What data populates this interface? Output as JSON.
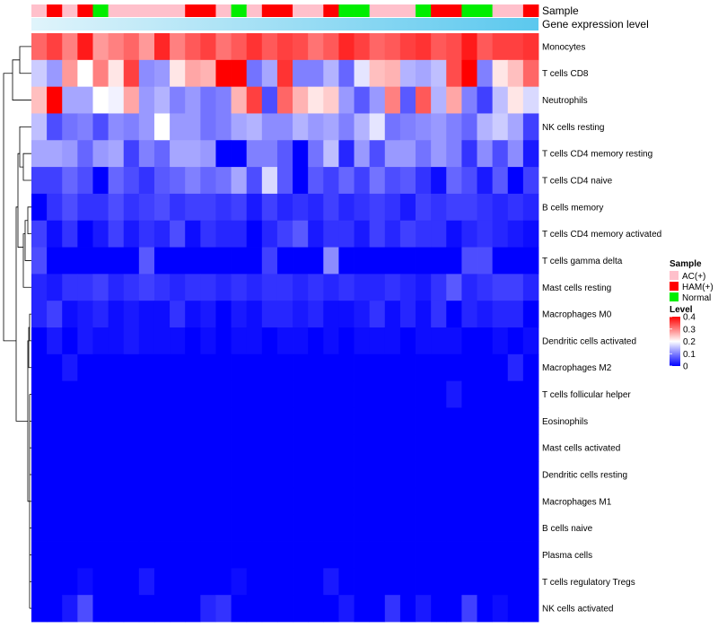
{
  "chart_data": {
    "type": "heatmap",
    "title": "",
    "annotation_rows": [
      "Sample",
      "Gene expression level"
    ],
    "sample_groups": [
      "AC",
      "HAM",
      "AC",
      "HAM",
      "Normal",
      "AC",
      "AC",
      "AC",
      "AC",
      "AC",
      "HAM",
      "HAM",
      "AC",
      "Normal",
      "AC",
      "HAM",
      "HAM",
      "AC",
      "AC",
      "HAM",
      "Normal",
      "Normal",
      "AC",
      "AC",
      "AC",
      "Normal",
      "HAM",
      "HAM",
      "Normal",
      "Normal",
      "AC",
      "AC",
      "HAM"
    ],
    "rows": [
      {
        "label": "Monocytes",
        "values": [
          0.32,
          0.35,
          0.3,
          0.38,
          0.28,
          0.3,
          0.32,
          0.28,
          0.37,
          0.3,
          0.33,
          0.35,
          0.31,
          0.33,
          0.36,
          0.33,
          0.35,
          0.34,
          0.31,
          0.33,
          0.37,
          0.35,
          0.32,
          0.33,
          0.35,
          0.36,
          0.33,
          0.34,
          0.38,
          0.33,
          0.35,
          0.35,
          0.36
        ]
      },
      {
        "label": "T cells CD8",
        "values": [
          0.16,
          0.12,
          0.28,
          0.2,
          0.3,
          0.22,
          0.35,
          0.11,
          0.12,
          0.22,
          0.27,
          0.26,
          0.4,
          0.4,
          0.09,
          0.13,
          0.36,
          0.1,
          0.1,
          0.14,
          0.08,
          0.18,
          0.25,
          0.26,
          0.14,
          0.13,
          0.15,
          0.34,
          0.4,
          0.1,
          0.22,
          0.25,
          0.32
        ]
      },
      {
        "label": "Neutrophils",
        "values": [
          0.25,
          0.42,
          0.13,
          0.13,
          0.2,
          0.19,
          0.27,
          0.12,
          0.14,
          0.1,
          0.12,
          0.09,
          0.1,
          0.26,
          0.35,
          0.06,
          0.32,
          0.26,
          0.22,
          0.24,
          0.12,
          0.07,
          0.12,
          0.3,
          0.07,
          0.33,
          0.14,
          0.27,
          0.1,
          0.05,
          0.15,
          0.22,
          0.17
        ]
      },
      {
        "label": "NK cells resting",
        "values": [
          0.15,
          0.06,
          0.09,
          0.1,
          0.06,
          0.11,
          0.1,
          0.12,
          0.2,
          0.12,
          0.12,
          0.09,
          0.1,
          0.13,
          0.14,
          0.11,
          0.11,
          0.14,
          0.12,
          0.13,
          0.1,
          0.14,
          0.18,
          0.09,
          0.1,
          0.11,
          0.12,
          0.1,
          0.08,
          0.14,
          0.16,
          0.13,
          0.05
        ]
      },
      {
        "label": "T cells CD4 memory resting",
        "values": [
          0.13,
          0.13,
          0.12,
          0.08,
          0.12,
          0.13,
          0.05,
          0.1,
          0.08,
          0.13,
          0.13,
          0.12,
          0.0,
          0.0,
          0.1,
          0.1,
          0.07,
          0.0,
          0.09,
          0.15,
          0.03,
          0.12,
          0.06,
          0.12,
          0.12,
          0.09,
          0.12,
          0.1,
          0.04,
          0.11,
          0.06,
          0.11,
          0.02
        ]
      },
      {
        "label": "T cells CD4 naive",
        "values": [
          0.05,
          0.05,
          0.08,
          0.06,
          0.0,
          0.08,
          0.06,
          0.04,
          0.07,
          0.08,
          0.1,
          0.08,
          0.09,
          0.13,
          0.06,
          0.17,
          0.07,
          0.0,
          0.07,
          0.05,
          0.08,
          0.05,
          0.09,
          0.06,
          0.07,
          0.04,
          0.01,
          0.08,
          0.06,
          0.02,
          0.07,
          0.0,
          0.05
        ]
      },
      {
        "label": "B cells memory",
        "values": [
          0.0,
          0.04,
          0.06,
          0.04,
          0.04,
          0.06,
          0.04,
          0.05,
          0.06,
          0.04,
          0.05,
          0.05,
          0.04,
          0.05,
          0.02,
          0.05,
          0.03,
          0.04,
          0.03,
          0.05,
          0.03,
          0.04,
          0.05,
          0.04,
          0.02,
          0.05,
          0.04,
          0.05,
          0.05,
          0.04,
          0.03,
          0.04,
          0.03
        ]
      },
      {
        "label": "T cells CD4 memory activated",
        "values": [
          0.05,
          0.01,
          0.04,
          0.0,
          0.02,
          0.05,
          0.02,
          0.04,
          0.03,
          0.06,
          0.01,
          0.04,
          0.03,
          0.03,
          0.0,
          0.03,
          0.05,
          0.07,
          0.02,
          0.04,
          0.04,
          0.02,
          0.05,
          0.03,
          0.05,
          0.04,
          0.04,
          0.01,
          0.03,
          0.04,
          0.03,
          0.02,
          0.01
        ]
      },
      {
        "label": "T cells gamma delta",
        "values": [
          0.06,
          0.0,
          0.0,
          0.0,
          0.0,
          0.0,
          0.0,
          0.07,
          0.0,
          0.0,
          0.0,
          0.0,
          0.0,
          0.0,
          0.0,
          0.05,
          0.0,
          0.0,
          0.0,
          0.11,
          0.0,
          0.0,
          0.0,
          0.0,
          0.0,
          0.0,
          0.0,
          0.0,
          0.06,
          0.06,
          0.0,
          0.0,
          0.0
        ]
      },
      {
        "label": "Mast cells resting",
        "values": [
          0.03,
          0.02,
          0.04,
          0.04,
          0.05,
          0.03,
          0.04,
          0.05,
          0.04,
          0.03,
          0.04,
          0.04,
          0.03,
          0.04,
          0.03,
          0.04,
          0.04,
          0.03,
          0.04,
          0.03,
          0.04,
          0.03,
          0.03,
          0.04,
          0.03,
          0.02,
          0.04,
          0.07,
          0.03,
          0.04,
          0.05,
          0.05,
          0.03
        ]
      },
      {
        "label": "Macrophages M0",
        "values": [
          0.03,
          0.05,
          0.01,
          0.02,
          0.03,
          0.01,
          0.02,
          0.01,
          0.01,
          0.04,
          0.01,
          0.02,
          0.0,
          0.02,
          0.01,
          0.03,
          0.03,
          0.02,
          0.03,
          0.01,
          0.01,
          0.02,
          0.04,
          0.01,
          0.03,
          0.01,
          0.04,
          0.0,
          0.03,
          0.02,
          0.03,
          0.03,
          0.0
        ]
      },
      {
        "label": "Dendritic cells activated",
        "values": [
          0.0,
          0.02,
          0.0,
          0.02,
          0.01,
          0.01,
          0.02,
          0.01,
          0.01,
          0.01,
          0.0,
          0.01,
          0.0,
          0.01,
          0.01,
          0.0,
          0.01,
          0.01,
          0.0,
          0.01,
          0.0,
          0.01,
          0.01,
          0.01,
          0.0,
          0.01,
          0.01,
          0.01,
          0.0,
          0.0,
          0.01,
          0.0,
          0.01
        ]
      },
      {
        "label": "Macrophages M2",
        "values": [
          0.0,
          0.0,
          0.02,
          0.0,
          0.0,
          0.0,
          0.0,
          0.0,
          0.0,
          0.0,
          0.0,
          0.0,
          0.0,
          0.0,
          0.0,
          0.0,
          0.0,
          0.0,
          0.0,
          0.0,
          0.0,
          0.0,
          0.0,
          0.0,
          0.0,
          0.0,
          0.0,
          0.0,
          0.0,
          0.0,
          0.0,
          0.03,
          0.0
        ]
      },
      {
        "label": "T cells follicular helper",
        "values": [
          0,
          0,
          0,
          0,
          0,
          0,
          0,
          0,
          0,
          0,
          0,
          0,
          0,
          0,
          0,
          0,
          0,
          0,
          0,
          0,
          0,
          0,
          0,
          0,
          0,
          0,
          0,
          0.02,
          0,
          0,
          0,
          0,
          0
        ]
      },
      {
        "label": "Eosinophils",
        "values": [
          0,
          0,
          0,
          0,
          0,
          0,
          0,
          0,
          0,
          0,
          0,
          0,
          0,
          0,
          0,
          0,
          0,
          0,
          0,
          0,
          0,
          0,
          0,
          0,
          0,
          0,
          0,
          0,
          0,
          0,
          0,
          0,
          0
        ]
      },
      {
        "label": "Mast cells activated",
        "values": [
          0,
          0,
          0,
          0,
          0,
          0,
          0,
          0,
          0,
          0,
          0,
          0,
          0,
          0,
          0,
          0,
          0,
          0,
          0,
          0,
          0,
          0,
          0,
          0,
          0,
          0,
          0,
          0,
          0,
          0,
          0,
          0,
          0
        ]
      },
      {
        "label": "Dendritic cells resting",
        "values": [
          0,
          0,
          0,
          0,
          0,
          0,
          0,
          0,
          0,
          0,
          0,
          0,
          0,
          0,
          0,
          0,
          0,
          0,
          0,
          0,
          0,
          0,
          0,
          0,
          0,
          0,
          0,
          0,
          0,
          0,
          0,
          0,
          0
        ]
      },
      {
        "label": "Macrophages M1",
        "values": [
          0,
          0,
          0,
          0,
          0,
          0,
          0,
          0,
          0,
          0,
          0,
          0,
          0,
          0,
          0,
          0,
          0,
          0,
          0,
          0,
          0,
          0,
          0,
          0,
          0,
          0,
          0,
          0,
          0,
          0,
          0,
          0,
          0
        ]
      },
      {
        "label": "B cells naive",
        "values": [
          0,
          0,
          0,
          0,
          0,
          0,
          0,
          0,
          0,
          0,
          0,
          0,
          0,
          0,
          0,
          0,
          0,
          0,
          0,
          0,
          0,
          0,
          0,
          0,
          0,
          0,
          0,
          0,
          0,
          0,
          0,
          0,
          0
        ]
      },
      {
        "label": "Plasma cells",
        "values": [
          0,
          0,
          0,
          0,
          0,
          0,
          0,
          0,
          0,
          0,
          0,
          0,
          0,
          0,
          0,
          0,
          0,
          0,
          0,
          0,
          0,
          0,
          0,
          0,
          0,
          0,
          0,
          0,
          0,
          0,
          0,
          0,
          0
        ]
      },
      {
        "label": "T cells regulatory  Tregs",
        "values": [
          0.0,
          0.0,
          0.0,
          0.01,
          0.0,
          0.0,
          0.0,
          0.02,
          0.0,
          0.0,
          0.0,
          0.0,
          0.0,
          0.01,
          0.0,
          0.0,
          0.0,
          0.0,
          0.0,
          0.02,
          0.0,
          0.0,
          0.0,
          0.0,
          0.0,
          0.0,
          0.0,
          0.0,
          0.0,
          0.0,
          0.0,
          0.0,
          0.0
        ]
      },
      {
        "label": "NK cells activated",
        "values": [
          0.0,
          0.0,
          0.02,
          0.06,
          0.0,
          0.0,
          0.0,
          0.0,
          0.0,
          0.0,
          0.0,
          0.03,
          0.04,
          0.0,
          0.0,
          0.0,
          0.0,
          0.0,
          0.0,
          0.0,
          0.02,
          0.0,
          0.0,
          0.04,
          0.0,
          0.02,
          0.0,
          0.0,
          0.05,
          0.0,
          0.01,
          0.0,
          0.0
        ]
      }
    ],
    "legend_sample": {
      "title": "Sample",
      "items": [
        {
          "key": "AC",
          "label": "AC(+)",
          "color": "#ffc0cb"
        },
        {
          "key": "HAM",
          "label": "HAM(+)",
          "color": "#ff0000"
        },
        {
          "key": "Normal",
          "label": "Normal",
          "color": "#00ee00"
        }
      ]
    },
    "legend_level": {
      "title": "Level",
      "ticks": [
        "0.4",
        "0.3",
        "0.2",
        "0.1",
        "0"
      ],
      "range": [
        0,
        0.4
      ],
      "colors": {
        "low": "#0000ff",
        "mid": "#ffffff",
        "high": "#ff0000"
      }
    },
    "expression_bar_colors": [
      "#e0f4fb",
      "#5bc8ee"
    ]
  }
}
